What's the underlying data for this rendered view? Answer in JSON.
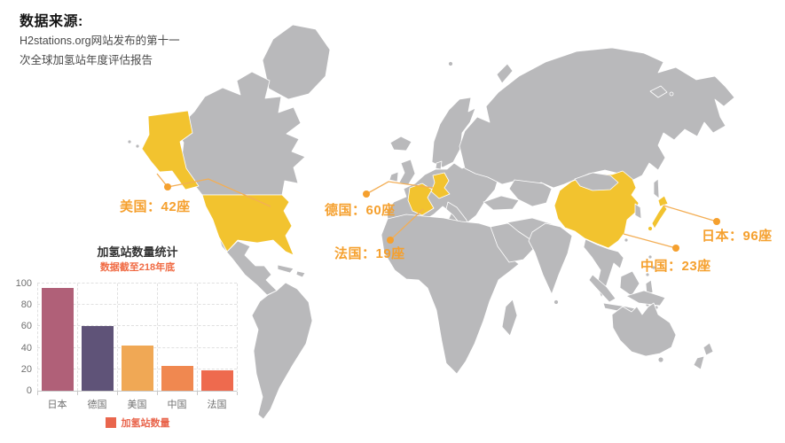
{
  "source": {
    "heading": "数据来源:",
    "line1": "H2stations.org网站发布的第十一",
    "line2": "次全球加氢站年度评估报告"
  },
  "map": {
    "labels": [
      {
        "country": "usa",
        "text": "美国：42座"
      },
      {
        "country": "germany",
        "text": "德国：60座"
      },
      {
        "country": "france",
        "text": "法国：19座"
      },
      {
        "country": "japan",
        "text": "日本：96座"
      },
      {
        "country": "china",
        "text": "中国：23座"
      }
    ],
    "colors": {
      "land": "#b9b9bb",
      "highlight": "#f2c32f",
      "label_text": "#f5a02e",
      "leader_line": "#f3ae55"
    }
  },
  "chart_data": {
    "type": "bar",
    "title": "加氢站数量统计",
    "subtitle": "数据截至218年底",
    "subtitle_color": "#f06a43",
    "categories": [
      "日本",
      "德国",
      "美国",
      "中国",
      "法国"
    ],
    "values": [
      96,
      60,
      42,
      23,
      19
    ],
    "bar_colors": [
      "#b06078",
      "#5f5378",
      "#f0a855",
      "#f08850",
      "#ee6a4e"
    ],
    "xlabel": "",
    "ylabel": "",
    "ylim": [
      0,
      100
    ],
    "yticks": [
      0,
      20,
      40,
      60,
      80,
      100
    ],
    "grid": "dashed-mesh",
    "legend": {
      "label": "加氢站数量",
      "color": "#e9664d",
      "position": "bottom"
    }
  }
}
